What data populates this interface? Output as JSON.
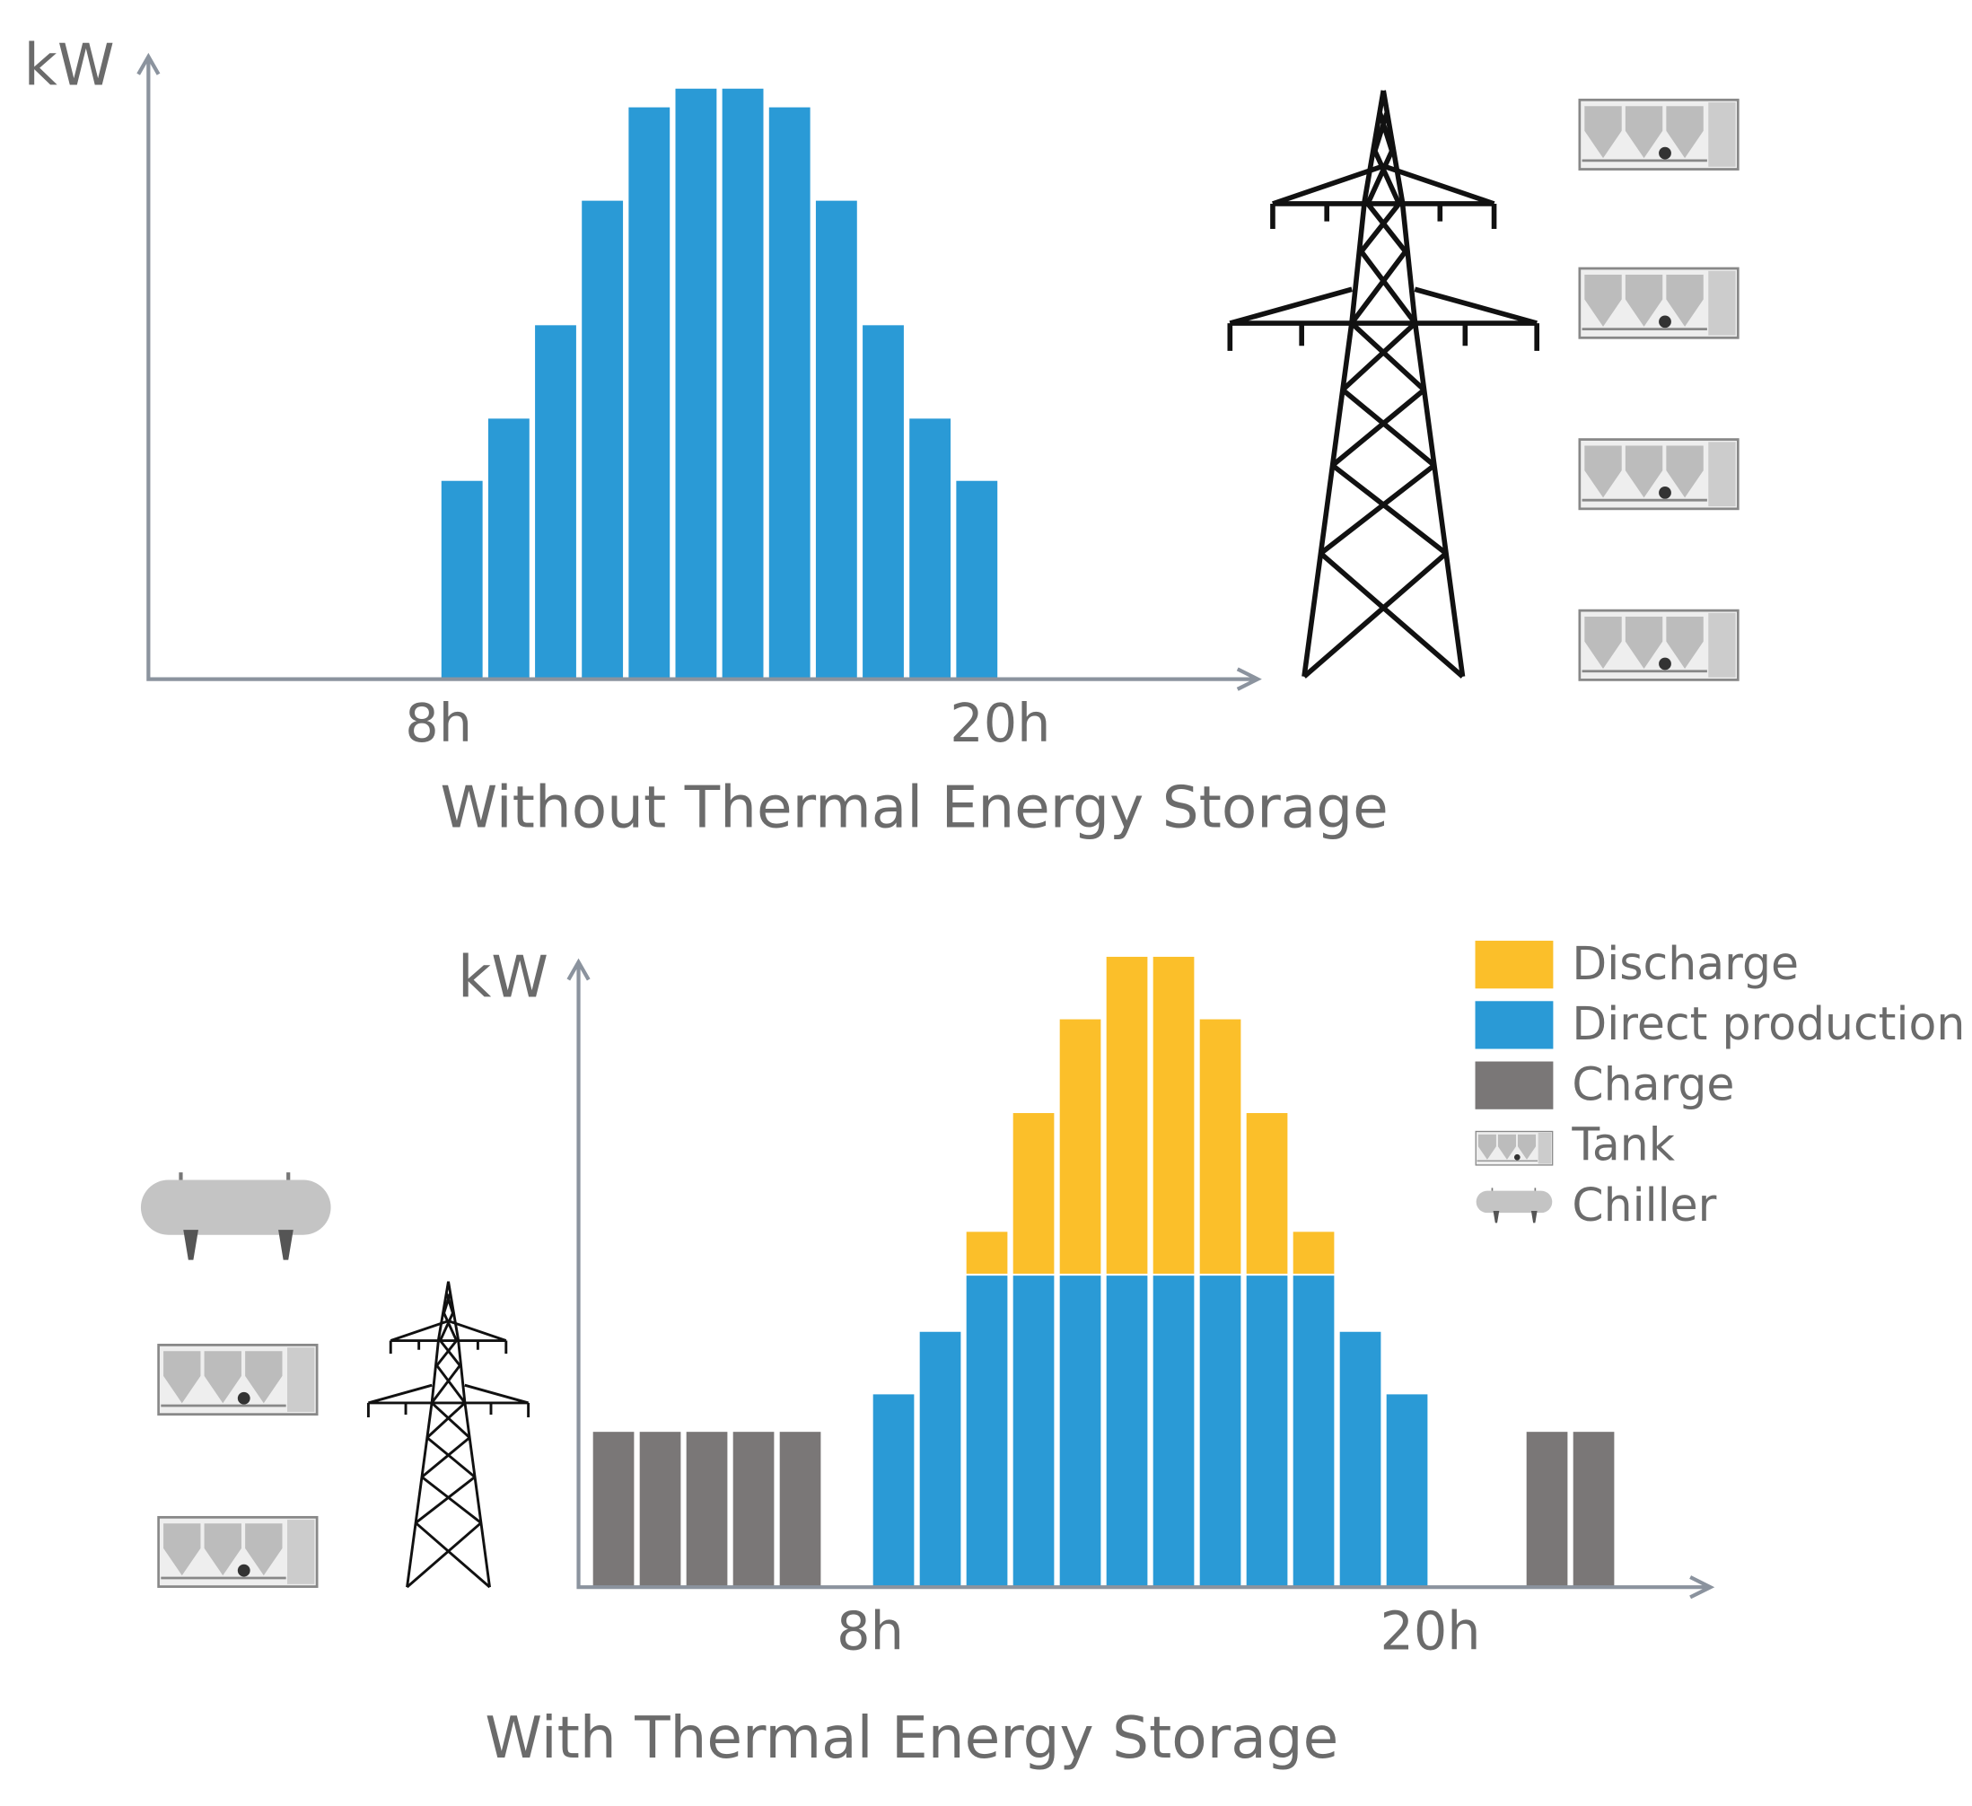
{
  "chart_data": [
    {
      "type": "bar",
      "title": "Without Thermal Energy Storage",
      "y_label": "kW",
      "x": [
        8,
        9,
        10,
        11,
        12,
        13,
        14,
        15,
        16,
        17,
        18,
        19
      ],
      "values": [
        32,
        42,
        57,
        77,
        92,
        95,
        95,
        92,
        77,
        57,
        42,
        32
      ],
      "color": "#2a9ad6",
      "xlim": [
        1.8,
        25.5
      ],
      "xticks": [
        {
          "value": 8,
          "label": "8h"
        },
        {
          "value": 20,
          "label": "20h"
        }
      ],
      "ylim": [
        0,
        100
      ]
    },
    {
      "type": "stacked_bar",
      "title": "With Thermal Energy Storage",
      "y_label": "kW",
      "x": [
        2,
        3,
        4,
        5,
        6,
        8,
        9,
        10,
        11,
        12,
        13,
        14,
        15,
        16,
        17,
        18,
        19,
        22,
        23
      ],
      "series": [
        {
          "name": "Charge",
          "color": "#7a7777",
          "values": [
            25,
            25,
            25,
            25,
            25,
            null,
            null,
            null,
            null,
            null,
            null,
            null,
            null,
            null,
            null,
            null,
            null,
            25,
            25
          ]
        },
        {
          "name": "Direct production",
          "color": "#2a9ad6",
          "values": [
            null,
            null,
            null,
            null,
            null,
            31,
            41,
            50,
            50,
            50,
            50,
            50,
            50,
            50,
            50,
            41,
            31,
            null,
            null
          ]
        },
        {
          "name": "Discharge",
          "color": "#fbbf2a",
          "values": [
            null,
            null,
            null,
            null,
            null,
            null,
            null,
            7,
            26,
            41,
            51,
            51,
            41,
            26,
            7,
            null,
            null,
            null,
            null
          ]
        }
      ],
      "legend_icons": [
        "Tank",
        "Chiller"
      ],
      "xlim": [
        1.75,
        26
      ],
      "xticks": [
        {
          "value": 8,
          "label": "8h"
        },
        {
          "value": 20,
          "label": "20h"
        }
      ],
      "ylim": [
        0,
        100
      ]
    }
  ]
}
